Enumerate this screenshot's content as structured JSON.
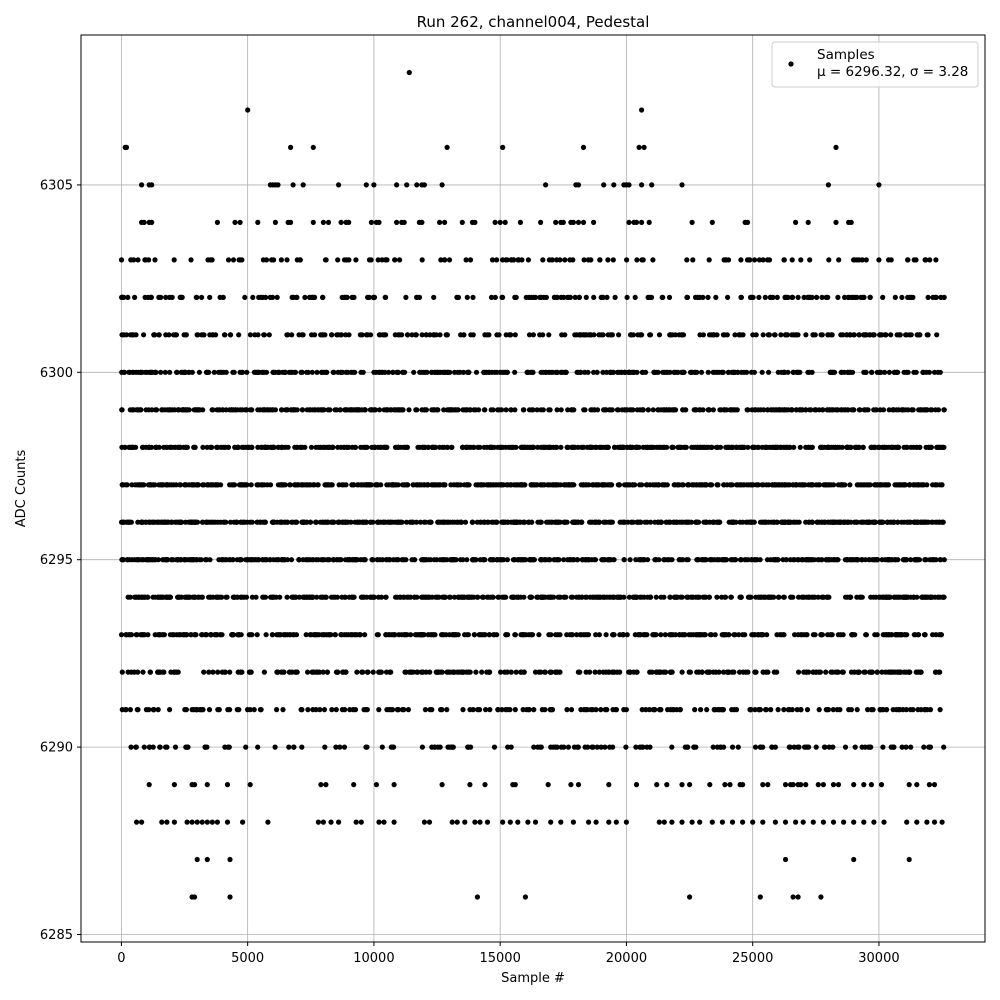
{
  "chart_data": {
    "type": "scatter",
    "title": "Run 262, channel004, Pedestal",
    "xlabel": "Sample #",
    "ylabel": "ADC Counts",
    "xlim": [
      -1600,
      34200
    ],
    "ylim": [
      6284.8,
      6309.0
    ],
    "xticks": [
      0,
      5000,
      10000,
      15000,
      20000,
      25000,
      30000
    ],
    "yticks": [
      6285,
      6290,
      6295,
      6300,
      6305
    ],
    "grid": true,
    "legend_position": "top-right",
    "marker_color": "#000000",
    "grid_color": "#b0b0b0",
    "series": [
      {
        "name": "Samples",
        "stats_label": "μ = 6296.32, σ = 3.28",
        "mean": 6296.32,
        "sigma": 3.28,
        "n_samples": 32600,
        "dense_levels": [
          6290,
          6291,
          6292,
          6293,
          6294,
          6295,
          6296,
          6297,
          6298,
          6299,
          6300,
          6301,
          6302,
          6303
        ],
        "sparse_points": [
          {
            "y": 6304,
            "x": [
              800,
              900,
              1100,
              1200,
              3800,
              4500,
              4700,
              5400,
              6100,
              6600,
              6700,
              7600,
              8000,
              8200,
              8700,
              8900,
              9000,
              9900,
              10100,
              10200,
              10900,
              11100,
              11200,
              11800,
              11900,
              12600,
              12800,
              13500,
              13900,
              14000,
              14800,
              15000,
              15200,
              15800,
              16600,
              17200,
              17400,
              17500,
              17800,
              17900,
              18100,
              18300,
              18700,
              20100,
              20300,
              20400,
              20600,
              20900,
              22600,
              23400,
              24700,
              24800,
              26700,
              27200,
              28300,
              28800,
              28900
            ]
          },
          {
            "y": 6305,
            "x": [
              800,
              1100,
              1200,
              5900,
              6000,
              6100,
              6200,
              6800,
              7200,
              8600,
              9700,
              10000,
              10900,
              11300,
              11700,
              11900,
              12000,
              12700,
              16800,
              18000,
              18100,
              19100,
              19500,
              19900,
              20000,
              20100,
              20600,
              21000,
              22200,
              28000,
              30000
            ]
          },
          {
            "y": 6306,
            "x": [
              150,
              200,
              6700,
              7600,
              12900,
              15100,
              18300,
              20500,
              20700,
              28300
            ]
          },
          {
            "y": 6307,
            "x": [
              5000,
              20600
            ]
          },
          {
            "y": 6308,
            "x": [
              11400
            ]
          },
          {
            "y": 6289,
            "x": [
              1100,
              2100,
              2800,
              2900,
              3400,
              4200,
              5100,
              7900,
              8100,
              9200,
              10100,
              10800,
              12700,
              13800,
              14400,
              15500,
              15600,
              16900,
              17800,
              18100,
              19300,
              20400,
              21200,
              21600,
              22200,
              22500,
              23300,
              23900,
              24100,
              24500,
              24600,
              25400,
              25600,
              26300,
              26500,
              26600,
              26800,
              26900,
              27100,
              27600,
              27800,
              28200,
              28400,
              29000,
              29400,
              29700,
              30100,
              31200,
              31500,
              32000,
              32200
            ]
          },
          {
            "y": 6288,
            "x": [
              600,
              800,
              1600,
              1800,
              2100,
              2600,
              2800,
              3000,
              3200,
              3400,
              3600,
              3800,
              4200,
              4800,
              5800,
              7800,
              8000,
              8300,
              8600,
              9300,
              9500,
              10200,
              10400,
              10800,
              12000,
              12200,
              13100,
              13300,
              13600,
              14000,
              14200,
              14500,
              15100,
              15400,
              15700,
              16100,
              16400,
              17000,
              17400,
              17900,
              18500,
              18800,
              19300,
              19600,
              20000,
              21300,
              21500,
              21800,
              22200,
              22600,
              22900,
              23400,
              23800,
              24200,
              24600,
              25000,
              25400,
              25900,
              26300,
              26700,
              27000,
              27400,
              27800,
              28200,
              28600,
              29000,
              29400,
              29800,
              30200,
              31100,
              31500,
              31900,
              32200,
              32500
            ]
          },
          {
            "y": 6287,
            "x": [
              3000,
              3400,
              4300,
              26300,
              29000,
              31200
            ]
          },
          {
            "y": 6286,
            "x": [
              2800,
              2900,
              4300,
              14100,
              16000,
              22500,
              25300,
              26600,
              26800,
              27700
            ]
          }
        ]
      }
    ]
  }
}
